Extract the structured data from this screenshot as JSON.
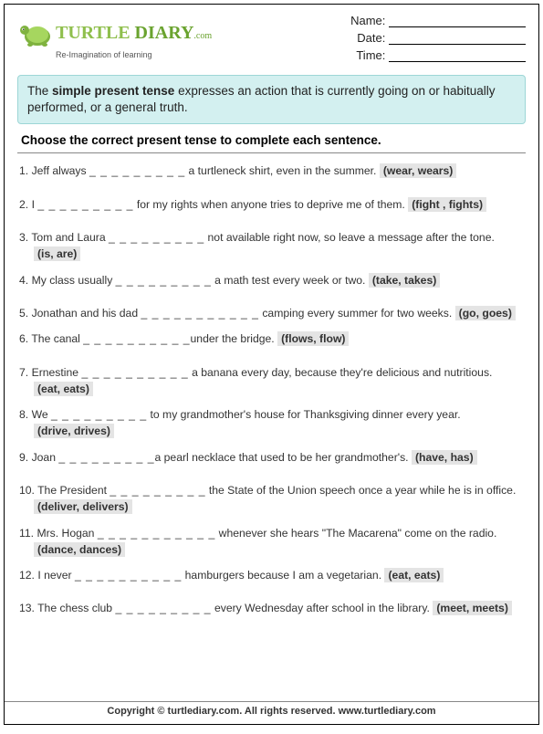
{
  "logo": {
    "word1": "TURTLE",
    "word2": "DIARY",
    "suffix": ".com",
    "tagline": "Re-Imagination of learning"
  },
  "fields": {
    "name_label": "Name:",
    "date_label": "Date:",
    "time_label": "Time:"
  },
  "intro": {
    "pre": "The ",
    "bold": "simple present tense",
    "post": " expresses an action that is currently going on or habitually performed, or a general truth."
  },
  "instruction": "Choose the correct present tense to complete each sentence.",
  "questions": [
    {
      "n": "1.",
      "a": "Jeff always ",
      "blank": "_ _ _ _ _ _ _ _ _",
      "b": " a turtleneck shirt, even in the summer. ",
      "c": "(wear, wears)",
      "tight": false
    },
    {
      "n": "2.",
      "a": "I ",
      "blank": "_ _ _ _ _ _ _ _ _",
      "b": " for my rights when anyone tries to deprive me of them. ",
      "c": "(fight , fights)",
      "tight": false
    },
    {
      "n": "3.",
      "a": "Tom and Laura ",
      "blank": "_ _ _ _ _ _ _ _ _",
      "b": " not available right now, so leave a message after the tone. ",
      "c": "(is, are)",
      "tight": true
    },
    {
      "n": "4.",
      "a": "My class usually ",
      "blank": "_ _ _ _ _ _ _ _ _",
      "b": "  a math test every week or two. ",
      "c": "(take, takes)",
      "tight": false
    },
    {
      "n": "5.",
      "a": "Jonathan and his dad ",
      "blank": "_ _ _ _ _ _ _ _ _ _ _",
      "b": "  camping every summer for two weeks. ",
      "c": "(go, goes)",
      "tight": true
    },
    {
      "n": "6.",
      "a": "The canal ",
      "blank": "_ _ _ _ _ _ _ _ _ _",
      "b": "under the bridge. ",
      "c": "(flows, flow)",
      "tight": false
    },
    {
      "n": "7.",
      "a": "Ernestine ",
      "blank": "_ _ _ _ _ _ _ _ _ _",
      "b": " a banana every day, because they're delicious and nutritious. ",
      "c": "(eat, eats)",
      "tight": true
    },
    {
      "n": "8.",
      "a": "We ",
      "blank": "_ _ _ _ _ _ _ _ _",
      "b": " to my grandmother's house for Thanksgiving dinner every year. ",
      "c": "(drive,  drives)",
      "tight": true
    },
    {
      "n": "9.",
      "a": "Joan ",
      "blank": "_ _ _ _ _ _ _ _ _",
      "b": "a pearl necklace that used to be her grandmother's. ",
      "c": "(have, has)",
      "tight": false
    },
    {
      "n": "10.",
      "a": "The President ",
      "blank": "_ _ _ _ _ _ _ _ _",
      "b": " the State of the Union speech once a year while he is in office. ",
      "c": "(deliver,  delivers)",
      "tight": true
    },
    {
      "n": "11.",
      "a": "Mrs. Hogan ",
      "blank": "_ _ _ _ _ _ _ _ _ _ _",
      "b": "  whenever she hears \"The Macarena\" come on the radio. ",
      "c": "(dance, dances)",
      "tight": true
    },
    {
      "n": "12.",
      "a": "I never ",
      "blank": "_ _ _ _ _ _ _ _ _ _",
      "b": "  hamburgers because I am a vegetarian. ",
      "c": "(eat, eats)",
      "tight": false
    },
    {
      "n": "13.",
      "a": "The chess club ",
      "blank": "_ _ _ _ _ _ _ _ _",
      "b": " every Wednesday after school in the library. ",
      "c": "(meet, meets)",
      "tight": false
    }
  ],
  "footer": "Copyright © turtlediary.com. All rights reserved. www.turtlediary.com"
}
